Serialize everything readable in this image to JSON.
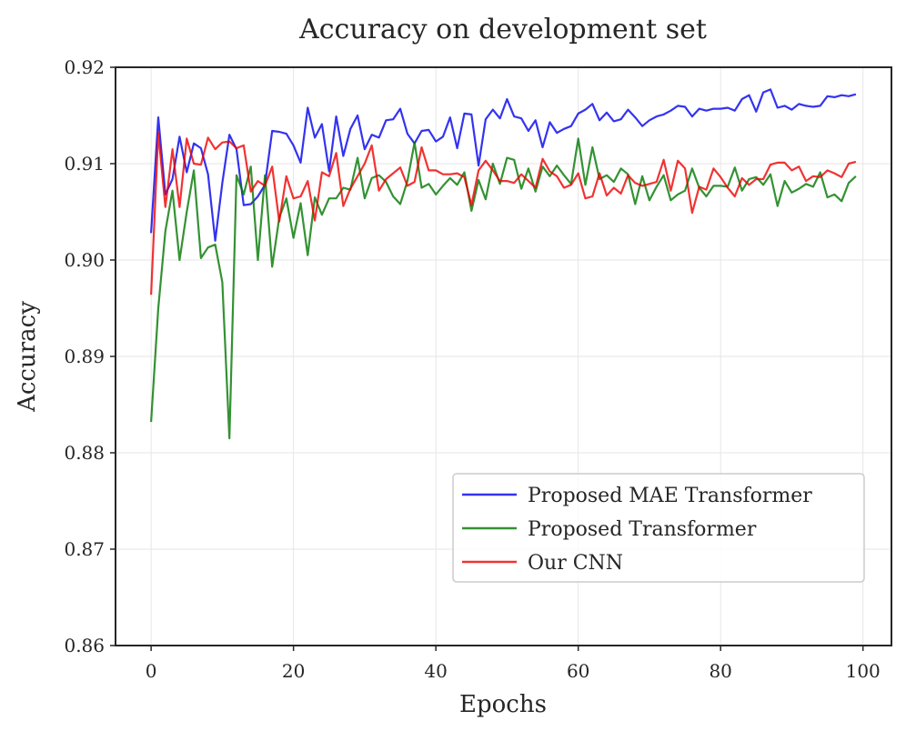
{
  "chart_data": {
    "type": "line",
    "title": "Accuracy on development set",
    "xlabel": "Epochs",
    "ylabel": "Accuracy",
    "xlim": [
      -5,
      104
    ],
    "ylim": [
      0.86,
      0.92
    ],
    "xticks": [
      0,
      20,
      40,
      60,
      80,
      100
    ],
    "xtick_labels": [
      "0",
      "20",
      "40",
      "60",
      "80",
      "100"
    ],
    "yticks": [
      0.86,
      0.87,
      0.88,
      0.89,
      0.9,
      0.91,
      0.92
    ],
    "ytick_labels": [
      "0.86",
      "0.87",
      "0.88",
      "0.89",
      "0.90",
      "0.91",
      "0.92"
    ],
    "grid": true,
    "legend_position": "lower-right",
    "series": [
      {
        "name": "Proposed MAE Transformer",
        "color": "#0000ee",
        "x": [
          0,
          1,
          2,
          3,
          4,
          5,
          6,
          7,
          8,
          9,
          10,
          11,
          12,
          13,
          14,
          15,
          16,
          17,
          18,
          19,
          20,
          21,
          22,
          23,
          24,
          25,
          26,
          27,
          28,
          29,
          30,
          31,
          32,
          33,
          34,
          35,
          36,
          37,
          38,
          39,
          40,
          41,
          42,
          43,
          44,
          45,
          46,
          47,
          48,
          49,
          50,
          51,
          52,
          53,
          54,
          55,
          56,
          57,
          58,
          59,
          60,
          61,
          62,
          63,
          64,
          65,
          66,
          67,
          68,
          69,
          70,
          71,
          72,
          73,
          74,
          75,
          76,
          77,
          78,
          79,
          80,
          81,
          82,
          83,
          84,
          85,
          86,
          87,
          88,
          89,
          90,
          91,
          92,
          93,
          94,
          95,
          96,
          97,
          98,
          99
        ],
        "values": [
          0.9028,
          0.9148,
          0.9068,
          0.9084,
          0.9128,
          0.9091,
          0.9121,
          0.9116,
          0.9089,
          0.902,
          0.908,
          0.913,
          0.9115,
          0.9057,
          0.9058,
          0.9066,
          0.9078,
          0.9134,
          0.9133,
          0.9131,
          0.9119,
          0.9101,
          0.9158,
          0.9127,
          0.9141,
          0.9092,
          0.9149,
          0.9108,
          0.9136,
          0.915,
          0.9115,
          0.913,
          0.9127,
          0.9145,
          0.9146,
          0.9157,
          0.9131,
          0.9121,
          0.9134,
          0.9135,
          0.9123,
          0.9128,
          0.9148,
          0.9116,
          0.9152,
          0.9151,
          0.9098,
          0.9146,
          0.9156,
          0.9147,
          0.9167,
          0.9149,
          0.9147,
          0.9134,
          0.9145,
          0.9117,
          0.9143,
          0.9132,
          0.9136,
          0.9139,
          0.9152,
          0.9156,
          0.9162,
          0.9145,
          0.9153,
          0.9144,
          0.9146,
          0.9156,
          0.9148,
          0.9139,
          0.9145,
          0.9149,
          0.9151,
          0.9155,
          0.916,
          0.9159,
          0.9149,
          0.9157,
          0.9155,
          0.9157,
          0.9157,
          0.9158,
          0.9155,
          0.9167,
          0.9171,
          0.9154,
          0.9174,
          0.9177,
          0.9158,
          0.916,
          0.9156,
          0.9162,
          0.916,
          0.9159,
          0.916,
          0.917,
          0.9169,
          0.9171,
          0.917,
          0.9172
        ]
      },
      {
        "name": "Proposed Transformer",
        "color": "#007700",
        "x": [
          0,
          1,
          2,
          3,
          4,
          5,
          6,
          7,
          8,
          9,
          10,
          11,
          12,
          13,
          14,
          15,
          16,
          17,
          18,
          19,
          20,
          21,
          22,
          23,
          24,
          25,
          26,
          27,
          28,
          29,
          30,
          31,
          32,
          33,
          34,
          35,
          36,
          37,
          38,
          39,
          40,
          41,
          42,
          43,
          44,
          45,
          46,
          47,
          48,
          49,
          50,
          51,
          52,
          53,
          54,
          55,
          56,
          57,
          58,
          59,
          60,
          61,
          62,
          63,
          64,
          65,
          66,
          67,
          68,
          69,
          70,
          71,
          72,
          73,
          74,
          75,
          76,
          77,
          78,
          79,
          80,
          81,
          82,
          83,
          84,
          85,
          86,
          87,
          88,
          89,
          90,
          91,
          92,
          93,
          94,
          95,
          96,
          97,
          98,
          99
        ],
        "values": [
          0.8832,
          0.895,
          0.903,
          0.9072,
          0.9,
          0.905,
          0.9093,
          0.9002,
          0.9013,
          0.9016,
          0.8977,
          0.8815,
          0.9088,
          0.9068,
          0.9097,
          0.9,
          0.9088,
          0.8993,
          0.9044,
          0.9064,
          0.9023,
          0.9059,
          0.9005,
          0.9065,
          0.9047,
          0.9064,
          0.9064,
          0.9075,
          0.9073,
          0.9106,
          0.9064,
          0.9085,
          0.9088,
          0.9081,
          0.9066,
          0.9058,
          0.9082,
          0.9122,
          0.9075,
          0.9079,
          0.9068,
          0.9077,
          0.9085,
          0.9078,
          0.9091,
          0.9051,
          0.9083,
          0.9063,
          0.91,
          0.9079,
          0.9106,
          0.9104,
          0.9074,
          0.9095,
          0.9071,
          0.9097,
          0.9087,
          0.9098,
          0.9088,
          0.9079,
          0.9126,
          0.9078,
          0.9117,
          0.9084,
          0.9088,
          0.9081,
          0.9095,
          0.9089,
          0.9058,
          0.9087,
          0.9062,
          0.9076,
          0.9088,
          0.9062,
          0.9068,
          0.9072,
          0.9095,
          0.9075,
          0.9066,
          0.9077,
          0.9077,
          0.9076,
          0.9096,
          0.9072,
          0.9084,
          0.9086,
          0.9078,
          0.9089,
          0.9056,
          0.9082,
          0.907,
          0.9074,
          0.9079,
          0.9076,
          0.9091,
          0.9065,
          0.9068,
          0.9061,
          0.908,
          0.9087
        ]
      },
      {
        "name": "Our CNN",
        "color": "#ee0000",
        "x": [
          0,
          1,
          2,
          3,
          4,
          5,
          6,
          7,
          8,
          9,
          10,
          11,
          12,
          13,
          14,
          15,
          16,
          17,
          18,
          19,
          20,
          21,
          22,
          23,
          24,
          25,
          26,
          27,
          28,
          29,
          30,
          31,
          32,
          33,
          34,
          35,
          36,
          37,
          38,
          39,
          40,
          41,
          42,
          43,
          44,
          45,
          46,
          47,
          48,
          49,
          50,
          51,
          52,
          53,
          54,
          55,
          56,
          57,
          58,
          59,
          60,
          61,
          62,
          63,
          64,
          65,
          66,
          67,
          68,
          69,
          70,
          71,
          72,
          73,
          74,
          75,
          76,
          77,
          78,
          79,
          80,
          81,
          82,
          83,
          84,
          85,
          86,
          87,
          88,
          89,
          90,
          91,
          92,
          93,
          94,
          95,
          96,
          97,
          98,
          99
        ],
        "values": [
          0.8964,
          0.9132,
          0.9055,
          0.9115,
          0.9055,
          0.9126,
          0.91,
          0.9099,
          0.9127,
          0.9115,
          0.9122,
          0.9123,
          0.9116,
          0.9119,
          0.9071,
          0.9082,
          0.9077,
          0.9097,
          0.904,
          0.9087,
          0.9064,
          0.9066,
          0.9082,
          0.9041,
          0.9091,
          0.9087,
          0.9111,
          0.9056,
          0.9074,
          0.9087,
          0.91,
          0.9119,
          0.9072,
          0.9084,
          0.909,
          0.9096,
          0.9077,
          0.9081,
          0.9117,
          0.9093,
          0.9093,
          0.9089,
          0.9089,
          0.909,
          0.9086,
          0.9057,
          0.9093,
          0.9103,
          0.9093,
          0.9082,
          0.9082,
          0.908,
          0.9089,
          0.9082,
          0.9075,
          0.9105,
          0.9092,
          0.9087,
          0.9075,
          0.9078,
          0.909,
          0.9064,
          0.9066,
          0.909,
          0.9067,
          0.9075,
          0.9069,
          0.9088,
          0.908,
          0.9077,
          0.9079,
          0.9081,
          0.9104,
          0.9072,
          0.9103,
          0.9095,
          0.9049,
          0.9076,
          0.9073,
          0.9095,
          0.9086,
          0.9075,
          0.9066,
          0.9085,
          0.9078,
          0.9084,
          0.9084,
          0.9099,
          0.9101,
          0.9101,
          0.9093,
          0.9097,
          0.9082,
          0.9087,
          0.9086,
          0.9093,
          0.909,
          0.9086,
          0.91,
          0.9102
        ]
      }
    ]
  }
}
